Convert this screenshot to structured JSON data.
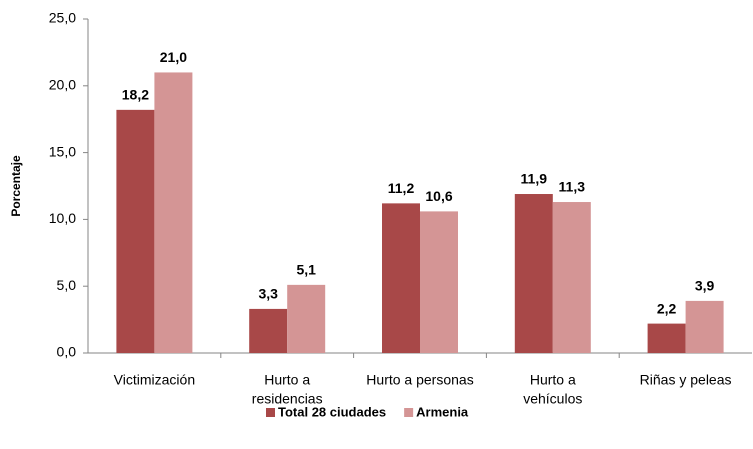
{
  "chart_data": {
    "type": "bar",
    "y_label": "Porcentaje",
    "categories": [
      [
        "Victimización"
      ],
      [
        "Hurto a",
        "residencias"
      ],
      [
        "Hurto a personas"
      ],
      [
        "Hurto a",
        "vehículos"
      ],
      [
        "Riñas y peleas"
      ]
    ],
    "series": [
      {
        "name": "Total 28 ciudades",
        "color": "#a84848",
        "values": [
          18.2,
          3.3,
          11.2,
          11.9,
          2.2
        ],
        "value_labels": [
          "18,2",
          "3,3",
          "11,2",
          "11,9",
          "2,2"
        ]
      },
      {
        "name": "Armenia",
        "color": "#d49595",
        "values": [
          21.0,
          5.1,
          10.6,
          11.3,
          3.9
        ],
        "value_labels": [
          "21,0",
          "5,1",
          "10,6",
          "11,3",
          "3,9"
        ]
      }
    ],
    "ylim": [
      0,
      25
    ],
    "yticks": [
      {
        "value": 0,
        "label": "0,0"
      },
      {
        "value": 5,
        "label": "5,0"
      },
      {
        "value": 10,
        "label": "10,0"
      },
      {
        "value": 15,
        "label": "15,0"
      },
      {
        "value": 20,
        "label": "20,0"
      },
      {
        "value": 25,
        "label": "25,0"
      }
    ],
    "grid": false,
    "legend": "bottom"
  }
}
